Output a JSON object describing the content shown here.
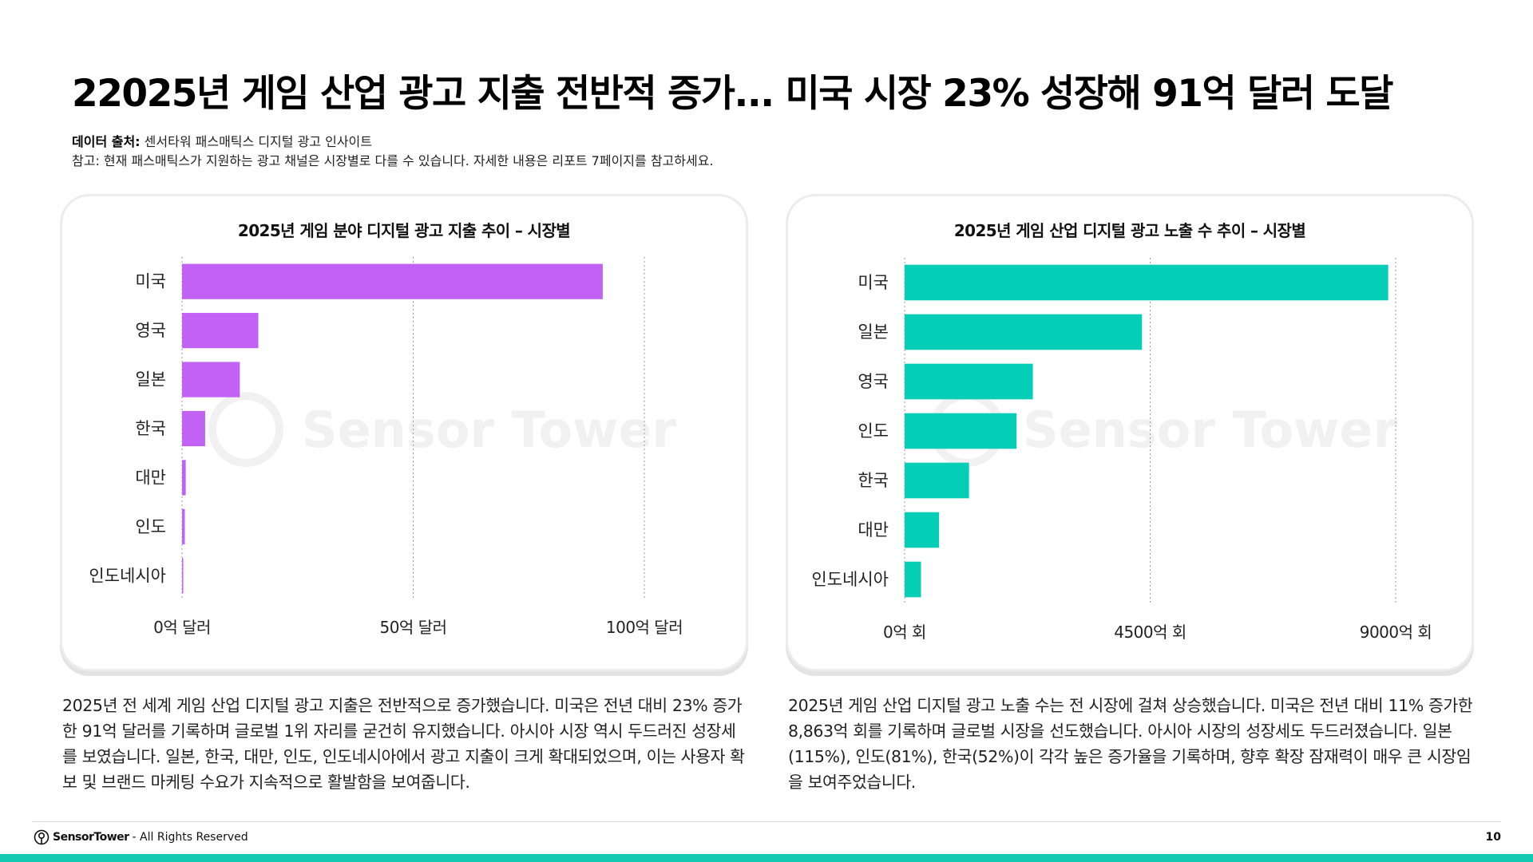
{
  "header": {
    "title": "22025년 게임 산업 광고 지출 전반적 증가... 미국 시장 23% 성장해 91억 달러 도달",
    "source_label": "데이터 출처:",
    "source_text": "센서타워 패스매틱스 디지털 광고 인사이트",
    "note": "참고: 현재 패스매틱스가 지원하는 광고 채널은 시장별로 다를 수 있습니다. 자세한 내용은 리포트 7페이지를 참고하세요."
  },
  "watermark": "Sensor Tower",
  "chart_data": [
    {
      "type": "bar",
      "orientation": "horizontal",
      "title": "2025년 게임 분야 디지털 광고 지출 추이 – 시장별",
      "categories": [
        "미국",
        "영국",
        "일본",
        "한국",
        "대만",
        "인도",
        "인도네시아"
      ],
      "values": [
        91,
        16.5,
        12.5,
        5,
        0.8,
        0.6,
        0.2
      ],
      "xlim": [
        0,
        100
      ],
      "ticks": [
        0,
        50,
        100
      ],
      "tick_labels": [
        "0억 달러",
        "50억 달러",
        "100억 달러"
      ],
      "color": "#c262f5",
      "grid": "vertical dotted"
    },
    {
      "type": "bar",
      "orientation": "horizontal",
      "title": "2025년 게임 산업 디지털 광고 노출 수 추이 – 시장별",
      "categories": [
        "미국",
        "일본",
        "영국",
        "인도",
        "한국",
        "대만",
        "인도네시아"
      ],
      "values": [
        8863,
        4350,
        2350,
        2050,
        1180,
        630,
        300
      ],
      "xlim": [
        0,
        9000
      ],
      "ticks": [
        0,
        4500,
        9000
      ],
      "tick_labels": [
        "0억 회",
        "4500억 회",
        "9000억 회"
      ],
      "color": "#05ceb7",
      "grid": "vertical dotted"
    }
  ],
  "descriptions": {
    "left": "2025년 전 세계 게임 산업 디지털 광고 지출은 전반적으로 증가했습니다. 미국은 전년 대비 23% 증가한 91억 달러를 기록하며 글로벌 1위 자리를 굳건히 유지했습니다. 아시아 시장 역시 두드러진 성장세를 보였습니다. 일본, 한국, 대만, 인도, 인도네시아에서 광고 지출이 크게 확대되었으며, 이는 사용자 확보 및 브랜드 마케팅 수요가 지속적으로 활발함을 보여줍니다.",
    "right": "2025년 게임 산업 디지털 광고 노출 수는 전 시장에 걸쳐 상승했습니다. 미국은 전년 대비 11% 증가한 8,863억 회를 기록하며 글로벌 시장을 선도했습니다. 아시아 시장의 성장세도 두드러졌습니다. 일본(115%), 인도(81%), 한국(52%)이 각각 높은 증가율을 기록하며, 향후 확장 잠재력이 매우 큰 시장임을 보여주었습니다."
  },
  "footer": {
    "brand": "SensorTower",
    "rights": " - All Rights Reserved",
    "page": "10"
  }
}
